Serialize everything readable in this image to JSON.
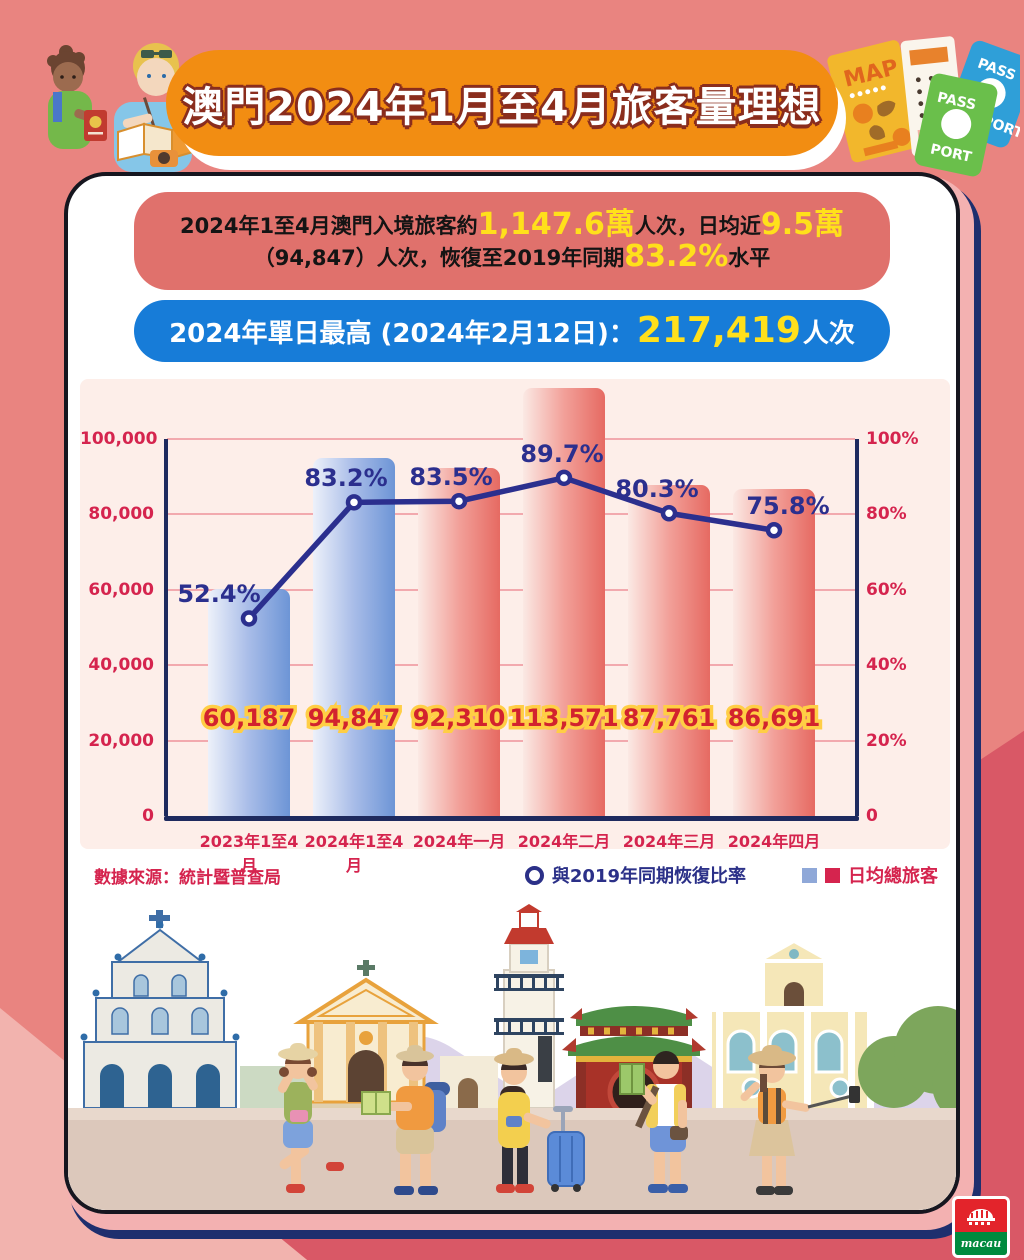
{
  "page": {
    "bg": "#e98480",
    "bg_dark": "#d95866",
    "bg_light": "#f2b3ae"
  },
  "header": {
    "title": "澳門2024年1月至4月旅客量理想",
    "banner_color": "#f28d12",
    "decor": {
      "map": "MAP",
      "pass": "PASS",
      "port": "PORT"
    }
  },
  "summary": {
    "part1": "2024年1至4月澳門入境旅客約",
    "highlight1": "1,147.6萬",
    "part2": "人次，日均近",
    "highlight2": "9.5萬",
    "part3": "（94,847）人次，恢復至2019年同期",
    "highlight3": "83.2%",
    "part4": "水平"
  },
  "peak": {
    "prefix": "2024年單日最高 (2024年2月12日)：",
    "value": "217,419",
    "suffix": "人次"
  },
  "chart_data": {
    "type": "bar",
    "title": "澳門2024年1月至4月旅客量",
    "categories": [
      "2023年1至4月",
      "2024年1至4月",
      "2024年一月",
      "2024年二月",
      "2024年三月",
      "2024年四月"
    ],
    "series": [
      {
        "name": "日均總旅客",
        "type": "bar",
        "values": [
          60187,
          94847,
          92310,
          113571,
          87761,
          86691
        ],
        "value_labels": [
          "60,187",
          "94,847",
          "92,310",
          "113,571",
          "87,761",
          "86,691"
        ],
        "colors": [
          "blue",
          "blue",
          "red",
          "red",
          "red",
          "red"
        ]
      },
      {
        "name": "與2019年同期恢復比率",
        "type": "line",
        "values": [
          52.4,
          83.2,
          83.5,
          89.7,
          80.3,
          75.8
        ],
        "point_labels": [
          "52.4%",
          "83.2%",
          "83.5%",
          "89.7%",
          "80.3%",
          "75.8%"
        ]
      }
    ],
    "left_axis": {
      "ticks": [
        "100,000",
        "80,000",
        "60,000",
        "40,000",
        "20,000",
        "0"
      ],
      "range": [
        0,
        100000
      ]
    },
    "right_axis": {
      "ticks": [
        "100%",
        "80%",
        "60%",
        "40%",
        "20%",
        "0"
      ],
      "range": [
        0,
        100
      ]
    },
    "grid": true,
    "legend_position": "bottom-right",
    "legend": [
      {
        "label": "與2019年同期恢復比率",
        "marker": "circle"
      },
      {
        "label": "日均總旅客",
        "marker": "squares"
      }
    ],
    "source": "數據來源：統計暨普查局",
    "line_color": "#2b2f8e",
    "tick_color": "#d5244e",
    "bar_colors": {
      "blue": [
        "#edf1fa",
        "#6d95d6"
      ],
      "red": [
        "#fbe9e4",
        "#e66a62"
      ]
    }
  },
  "footer": {
    "logo_text": "macau"
  }
}
